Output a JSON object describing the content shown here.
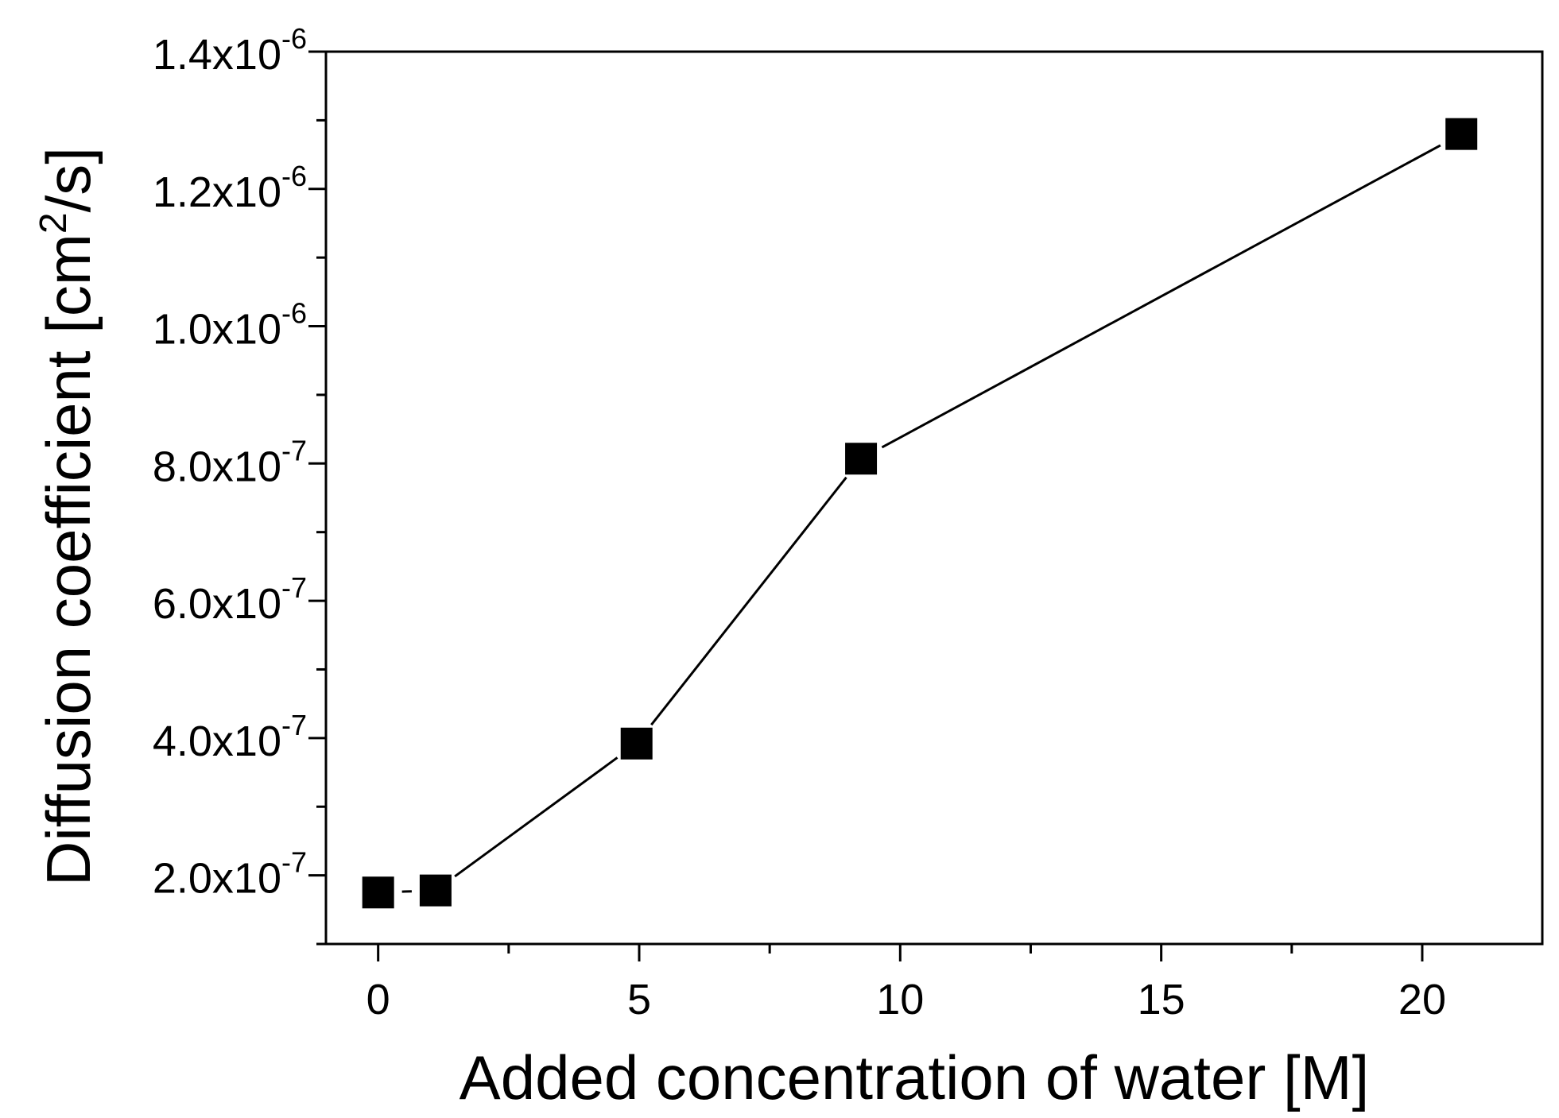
{
  "chart_data": {
    "type": "line",
    "title": "",
    "xlabel": "Added concentration of water [M]",
    "ylabel": {
      "main": "Diffusion coefficient [cm",
      "sup": "2",
      "tail": "/s]"
    },
    "xlim": [
      -1,
      22.3
    ],
    "ylim": [
      1e-07,
      1.4e-06
    ],
    "x_ticks": [
      {
        "value": 0,
        "label": "0"
      },
      {
        "value": 5,
        "label": "5"
      },
      {
        "value": 10,
        "label": "10"
      },
      {
        "value": 15,
        "label": "15"
      },
      {
        "value": 20,
        "label": "20"
      }
    ],
    "x_minor_ticks": [
      2.5,
      7.5,
      12.5,
      17.5
    ],
    "y_ticks": [
      {
        "value": 2e-07,
        "mantissa": "2.0x10",
        "exp": "-7"
      },
      {
        "value": 4e-07,
        "mantissa": "4.0x10",
        "exp": "-7"
      },
      {
        "value": 6e-07,
        "mantissa": "6.0x10",
        "exp": "-7"
      },
      {
        "value": 8e-07,
        "mantissa": "8.0x10",
        "exp": "-7"
      },
      {
        "value": 1e-06,
        "mantissa": "1.0x10",
        "exp": "-6"
      },
      {
        "value": 1.2e-06,
        "mantissa": "1.2x10",
        "exp": "-6"
      },
      {
        "value": 1.4e-06,
        "mantissa": "1.4x10",
        "exp": "-6"
      }
    ],
    "y_minor_ticks": [
      1e-07,
      3e-07,
      5e-07,
      7e-07,
      9e-07,
      1.1e-06,
      1.3e-06
    ],
    "series": [
      {
        "name": "Diffusion coefficient",
        "color": "#000000",
        "marker": "square",
        "points": [
          {
            "x": 0.0,
            "y": 1.75e-07
          },
          {
            "x": 1.1,
            "y": 1.78e-07
          },
          {
            "x": 4.95,
            "y": 3.92e-07
          },
          {
            "x": 9.25,
            "y": 8.07e-07
          },
          {
            "x": 20.75,
            "y": 1.28e-06
          }
        ]
      }
    ],
    "grid": false,
    "legend": "none"
  }
}
